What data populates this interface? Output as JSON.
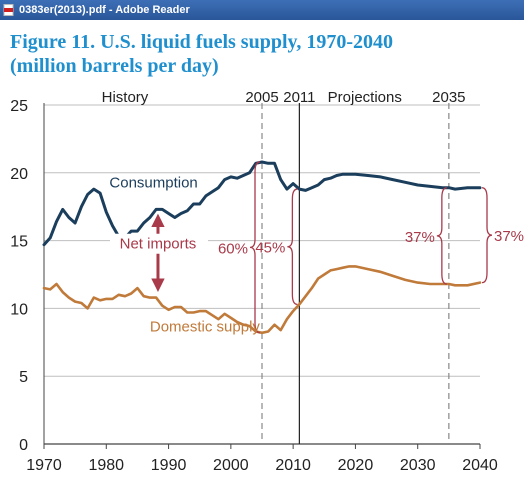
{
  "window": {
    "title": "0383er(2013).pdf - Adobe Reader",
    "icon": "pdf-document-icon"
  },
  "figure": {
    "title_line1": "Figure 11. U.S. liquid fuels supply, 1970-2040",
    "title_line2": "(million barrels per day)"
  },
  "colors": {
    "title": "#1f8fce",
    "consumption": "#1b3e5c",
    "domestic": "#c07a3a",
    "annotation": "#a83a4a",
    "grid": "#bfbfbf",
    "titlebar": "#2a5699"
  },
  "chart_data": {
    "type": "line",
    "xlim": [
      1970,
      2040
    ],
    "ylim": [
      0,
      25
    ],
    "x_ticks": [
      "1970",
      "1980",
      "1990",
      "2000",
      "2010",
      "2020",
      "2030",
      "2040"
    ],
    "y_ticks": [
      "0",
      "5",
      "10",
      "15",
      "20",
      "25"
    ],
    "grid": "horizontal",
    "series": [
      {
        "name": "Consumption",
        "x": [
          1970,
          1971,
          1972,
          1973,
          1974,
          1975,
          1976,
          1977,
          1978,
          1979,
          1980,
          1981,
          1982,
          1983,
          1984,
          1985,
          1986,
          1987,
          1988,
          1989,
          1990,
          1991,
          1992,
          1993,
          1994,
          1995,
          1996,
          1997,
          1998,
          1999,
          2000,
          2001,
          2002,
          2003,
          2004,
          2005,
          2006,
          2007,
          2008,
          2009,
          2010,
          2011,
          2012,
          2013,
          2014,
          2015,
          2016,
          2017,
          2018,
          2019,
          2020,
          2022,
          2024,
          2026,
          2028,
          2030,
          2032,
          2034,
          2035,
          2036,
          2038,
          2040
        ],
        "y": [
          14.7,
          15.2,
          16.4,
          17.3,
          16.7,
          16.3,
          17.5,
          18.4,
          18.8,
          18.5,
          17.1,
          16.1,
          15.3,
          15.2,
          15.7,
          15.7,
          16.3,
          16.7,
          17.3,
          17.3,
          17.0,
          16.7,
          17.0,
          17.2,
          17.7,
          17.7,
          18.3,
          18.6,
          18.9,
          19.5,
          19.7,
          19.6,
          19.8,
          20.0,
          20.7,
          20.8,
          20.7,
          20.7,
          19.5,
          18.8,
          19.2,
          18.8,
          18.7,
          18.9,
          19.1,
          19.5,
          19.6,
          19.8,
          19.9,
          19.9,
          19.9,
          19.8,
          19.7,
          19.5,
          19.3,
          19.1,
          19.0,
          18.9,
          18.9,
          18.8,
          18.9,
          18.9
        ]
      },
      {
        "name": "Domestic supply",
        "x": [
          1970,
          1971,
          1972,
          1973,
          1974,
          1975,
          1976,
          1977,
          1978,
          1979,
          1980,
          1981,
          1982,
          1983,
          1984,
          1985,
          1986,
          1987,
          1988,
          1989,
          1990,
          1991,
          1992,
          1993,
          1994,
          1995,
          1996,
          1997,
          1998,
          1999,
          2000,
          2001,
          2002,
          2003,
          2004,
          2005,
          2006,
          2007,
          2008,
          2009,
          2010,
          2011,
          2012,
          2013,
          2014,
          2015,
          2016,
          2017,
          2018,
          2019,
          2020,
          2022,
          2024,
          2026,
          2028,
          2030,
          2032,
          2034,
          2035,
          2036,
          2038,
          2040
        ],
        "y": [
          11.5,
          11.4,
          11.8,
          11.2,
          10.8,
          10.5,
          10.4,
          10.0,
          10.8,
          10.6,
          10.7,
          10.7,
          11.0,
          10.9,
          11.1,
          11.5,
          10.9,
          10.8,
          10.8,
          10.2,
          9.9,
          10.1,
          10.1,
          9.7,
          9.7,
          9.8,
          9.8,
          9.5,
          9.2,
          9.6,
          9.3,
          9.0,
          8.8,
          8.7,
          8.3,
          8.2,
          8.3,
          8.8,
          8.4,
          9.2,
          9.8,
          10.3,
          10.9,
          11.5,
          12.2,
          12.5,
          12.8,
          12.9,
          13.0,
          13.1,
          13.1,
          12.9,
          12.7,
          12.4,
          12.1,
          11.9,
          11.8,
          11.8,
          11.8,
          11.7,
          11.7,
          11.9
        ]
      }
    ],
    "reference_lines": [
      {
        "x": 2005,
        "style": "dashed"
      },
      {
        "x": 2011,
        "style": "solid"
      },
      {
        "x": 2035,
        "style": "dashed"
      }
    ],
    "top_labels": [
      {
        "text": "History",
        "x": 1983
      },
      {
        "text": "2005",
        "x": 2005
      },
      {
        "text": "2011",
        "x": 2011
      },
      {
        "text": "Projections",
        "x": 2021.5
      },
      {
        "text": "2035",
        "x": 2035
      }
    ],
    "series_labels": [
      {
        "text": "Consumption",
        "x": 1980.5,
        "y": 18.9,
        "color_key": "consumption"
      },
      {
        "text": "Domestic supply",
        "x": 1987,
        "y": 8.3,
        "color_key": "domestic"
      }
    ],
    "net_imports": {
      "label": "Net imports",
      "x": 1988.3,
      "y_top": 17.3,
      "y_bottom": 10.9
    },
    "import_shares": [
      {
        "text": "60%",
        "x": 2005,
        "side": "left",
        "y_top": 20.8,
        "y_bottom": 8.2
      },
      {
        "text": "45%",
        "x": 2011,
        "side": "left",
        "y_top": 18.8,
        "y_bottom": 10.3
      },
      {
        "text": "37%",
        "x": 2035,
        "side": "left",
        "y_top": 18.9,
        "y_bottom": 11.8
      },
      {
        "text": "37%",
        "x": 2040,
        "side": "right",
        "y_top": 18.9,
        "y_bottom": 11.9
      }
    ]
  }
}
